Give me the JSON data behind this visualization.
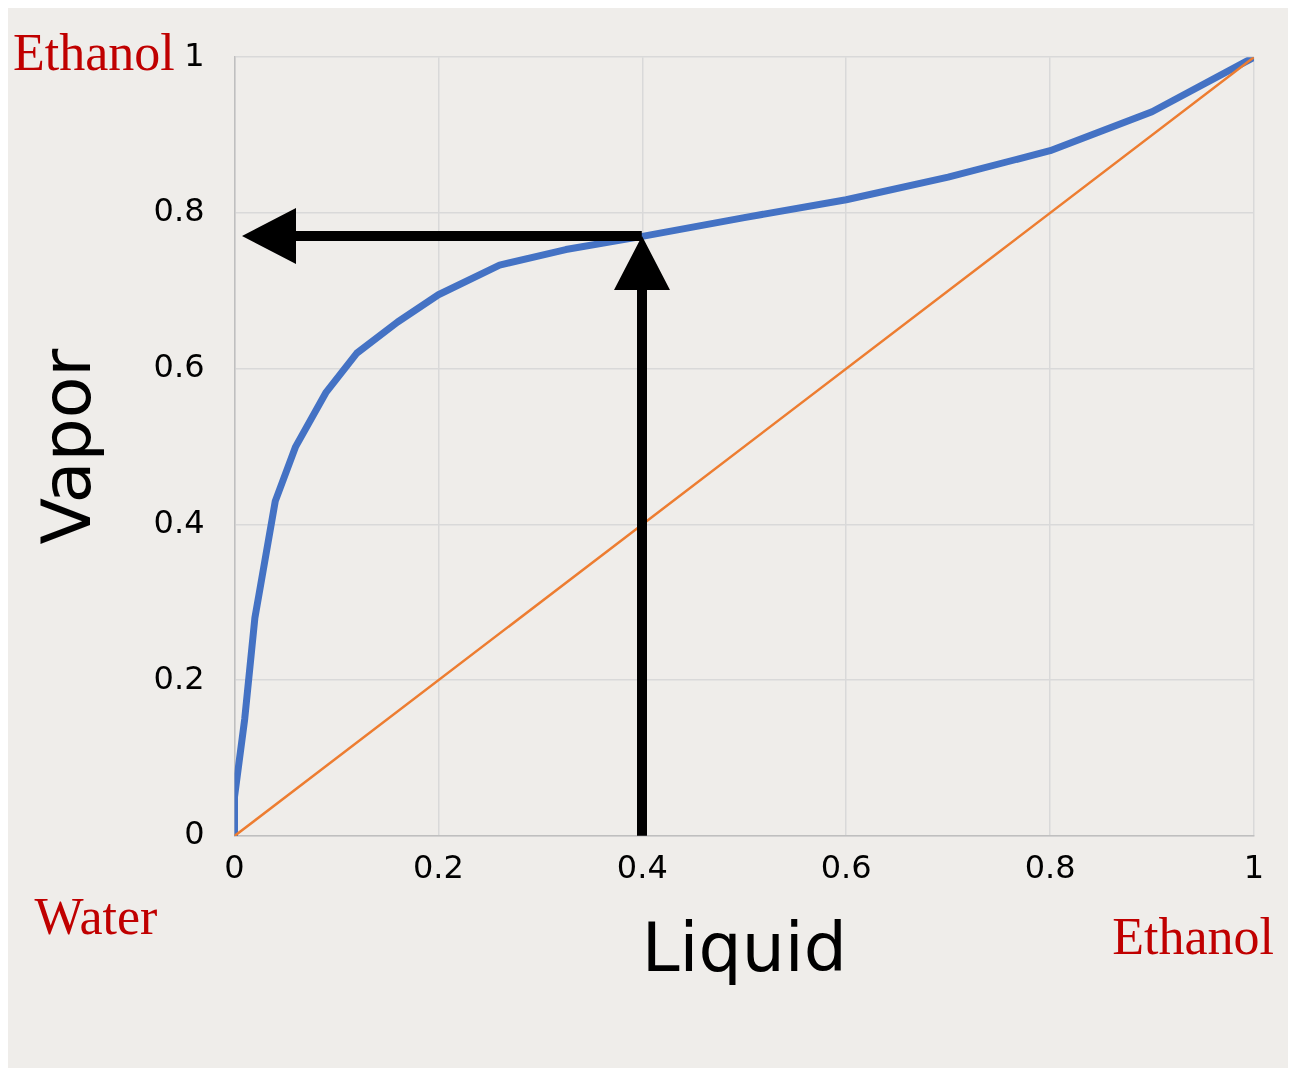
{
  "chart_data": {
    "type": "line",
    "xlabel": "Liquid",
    "ylabel": "Vapor",
    "annotations": [
      "Ethanol",
      "Water",
      "Ethanol"
    ],
    "xlim": [
      0,
      1
    ],
    "ylim": [
      0,
      1
    ],
    "xticks": [
      0,
      0.2,
      0.4,
      0.6,
      0.8,
      1
    ],
    "yticks": [
      0,
      0.2,
      0.4,
      0.6,
      0.8,
      1
    ],
    "grid": true,
    "legend": false,
    "marker": "none",
    "line_style": "solid",
    "series": [
      {
        "color": "#4472c4",
        "x": [
          0,
          0,
          0.01,
          0.02,
          0.04,
          0.06,
          0.09,
          0.12,
          0.16,
          0.2,
          0.26,
          0.325,
          0.4,
          0.5,
          0.6,
          0.7,
          0.8,
          0.9,
          1
        ],
        "values": [
          0,
          0.05,
          0.15,
          0.28,
          0.43,
          0.5,
          0.57,
          0.62,
          0.66,
          0.695,
          0.733,
          0.753,
          0.77,
          0.794,
          0.817,
          0.846,
          0.88,
          0.93,
          1
        ]
      },
      {
        "color": "#ed7d31",
        "x": [
          0,
          1
        ],
        "values": [
          0,
          1
        ]
      }
    ]
  }
}
